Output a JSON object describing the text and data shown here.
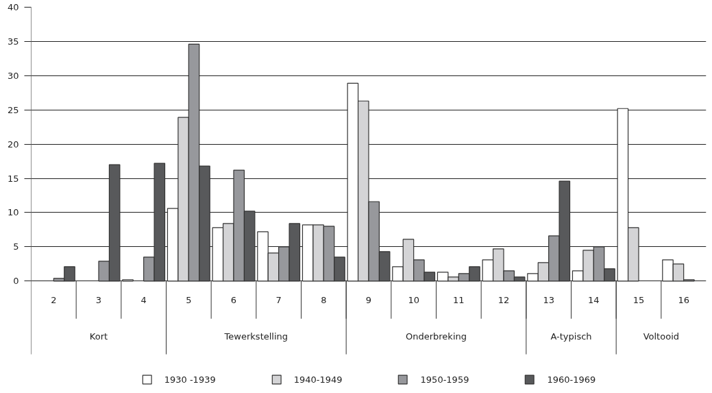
{
  "chart_data": {
    "type": "bar",
    "categories": [
      "2",
      "3",
      "4",
      "5",
      "6",
      "7",
      "8",
      "9",
      "10",
      "11",
      "12",
      "13",
      "14",
      "15",
      "16"
    ],
    "series": [
      {
        "name": "1930 -1939",
        "color": "#ffffff",
        "values": [
          null,
          null,
          0.2,
          10.6,
          7.8,
          7.2,
          8.2,
          28.9,
          2.1,
          1.3,
          3.1,
          1.1,
          1.5,
          25.2,
          3.1
        ]
      },
      {
        "name": "1940-1949",
        "color": "#d4d4d6",
        "values": [
          null,
          null,
          null,
          23.9,
          8.4,
          4.1,
          8.2,
          26.3,
          6.1,
          0.6,
          4.7,
          2.7,
          4.5,
          7.8,
          2.5
        ]
      },
      {
        "name": "1950-1959",
        "color": "#97989c",
        "values": [
          0.4,
          2.9,
          3.5,
          34.6,
          16.2,
          5.0,
          8.0,
          11.6,
          3.1,
          1.1,
          1.5,
          6.6,
          5.0,
          null,
          0.2
        ]
      },
      {
        "name": "1960-1969",
        "color": "#58595b",
        "values": [
          2.1,
          17.0,
          17.2,
          16.8,
          10.2,
          8.4,
          3.5,
          4.3,
          1.3,
          2.1,
          0.6,
          14.6,
          1.8,
          null,
          null
        ]
      }
    ],
    "annotations": [
      "Kort",
      "Tewerkstelling",
      "Onderbreking",
      "A-typisch",
      "Voltooid"
    ],
    "ylim": [
      0,
      40
    ],
    "yticks": [
      0,
      5,
      10,
      15,
      20,
      25,
      30,
      35,
      40
    ],
    "grid": "y",
    "legend": "bottom"
  }
}
